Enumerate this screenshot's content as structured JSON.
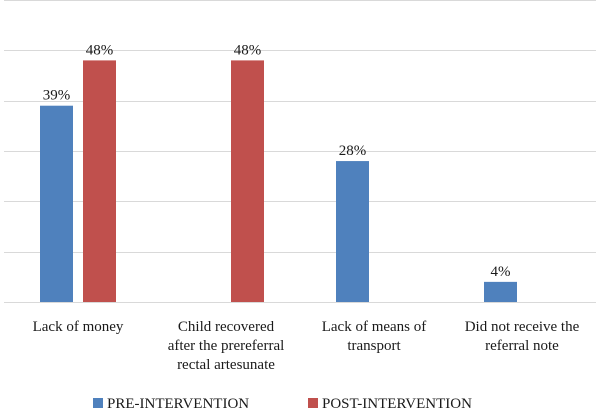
{
  "chart_data": {
    "type": "bar",
    "categories": [
      [
        "Lack of money"
      ],
      [
        "Child recovered",
        "after the prereferral",
        "rectal artesunate"
      ],
      [
        "Lack of means of",
        "transport"
      ],
      [
        "Did not receive the",
        "referral note"
      ]
    ],
    "series": [
      {
        "name": "PRE-INTERVENTION",
        "color": "#4f81bd",
        "values": [
          39,
          null,
          28,
          4
        ],
        "labels": [
          "39%",
          "",
          "28%",
          "4%"
        ]
      },
      {
        "name": "POST-INTERVENTION",
        "color": "#c0504d",
        "values": [
          48,
          48,
          null,
          null
        ],
        "labels": [
          "48%",
          "48%",
          "",
          ""
        ]
      }
    ],
    "ylim": [
      0,
      60
    ],
    "grid": true,
    "legend": "bottom",
    "title": "",
    "xlabel": "",
    "ylabel": ""
  }
}
